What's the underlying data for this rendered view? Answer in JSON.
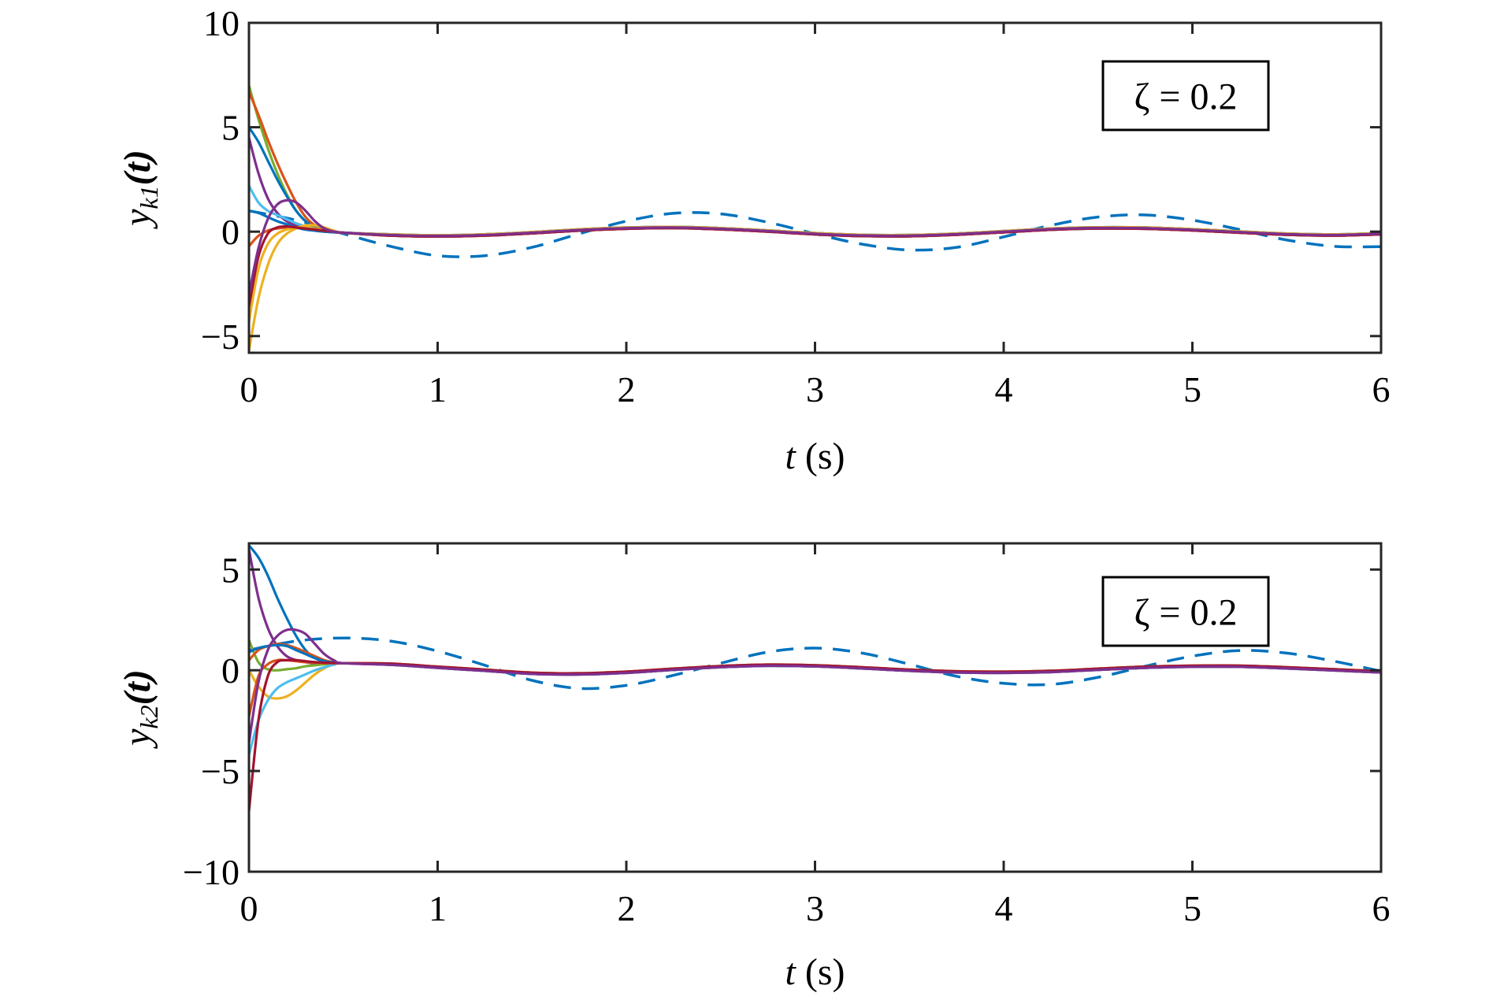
{
  "colors": {
    "blue": "#0072BD",
    "orange": "#D95319",
    "yellow": "#EDB120",
    "purple": "#7E2F8E",
    "green": "#77AC30",
    "lightblue": "#4DBEEE",
    "darkred": "#A2142F"
  },
  "chart_data": [
    {
      "type": "line",
      "ylabel": "y_k1(t)",
      "ylabel_main": "y",
      "ylabel_sub": "k1",
      "ylabel_arg": "(t)",
      "xlabel_var": "t",
      "xlabel_unit": " (s)",
      "legend": "ζ = 0.2",
      "xlim": [
        0,
        6
      ],
      "ylim": [
        -5.8,
        10
      ],
      "xticks": [
        "0",
        "1",
        "2",
        "3",
        "4",
        "5",
        "6"
      ],
      "yticks": [
        {
          "v": -5,
          "label": "−5"
        },
        {
          "v": 0,
          "label": "0"
        },
        {
          "v": 5,
          "label": "5"
        },
        {
          "v": 10,
          "label": "10"
        }
      ],
      "transient_x": [
        0,
        0.05,
        0.1,
        0.15,
        0.2,
        0.25,
        0.3,
        0.35,
        0.4,
        0.45,
        0.5
      ],
      "consensus_x": [
        0.5,
        0.75,
        1,
        1.25,
        1.5,
        1.75,
        2,
        2.25,
        2.5,
        2.75,
        3,
        3.25,
        3.5,
        3.75,
        4,
        4.25,
        4.5,
        4.75,
        5,
        5.25,
        5.5,
        5.75,
        6
      ],
      "consensus": [
        -0.05,
        -0.16,
        -0.2,
        -0.16,
        -0.05,
        0.08,
        0.17,
        0.2,
        0.14,
        0.03,
        -0.1,
        -0.18,
        -0.19,
        -0.12,
        0,
        0.12,
        0.18,
        0.17,
        0.09,
        -0.02,
        -0.12,
        -0.16,
        -0.1
      ],
      "reference": {
        "name": "reference (dashed)",
        "color": "blue",
        "x": [
          0,
          0.25,
          0.5,
          0.75,
          1,
          1.25,
          1.5,
          1.75,
          2,
          2.25,
          2.5,
          2.75,
          3,
          3.25,
          3.5,
          3.75,
          4,
          4.25,
          4.5,
          4.75,
          5,
          5.25,
          5.5,
          5.75,
          6
        ],
        "y": [
          1.0,
          0.55,
          -0.1,
          -0.7,
          -1.15,
          -1.15,
          -0.75,
          -0.1,
          0.5,
          0.88,
          0.85,
          0.45,
          -0.1,
          -0.6,
          -0.88,
          -0.75,
          -0.25,
          0.3,
          0.7,
          0.8,
          0.55,
          0.1,
          -0.4,
          -0.7,
          -0.72
        ]
      },
      "series": [
        {
          "color": "green",
          "y": [
            7,
            5.4,
            4.0,
            2.8,
            1.8,
            1.0,
            0.5,
            0.2,
            0.05,
            0,
            -0.05
          ]
        },
        {
          "color": "orange",
          "y": [
            6.7,
            5.6,
            4.4,
            3.3,
            2.3,
            1.4,
            0.7,
            0.3,
            0.1,
            0,
            -0.05
          ]
        },
        {
          "color": "blue",
          "y": [
            5,
            4.3,
            3.4,
            2.5,
            1.7,
            1.0,
            0.5,
            0.2,
            0.05,
            0,
            -0.05
          ]
        },
        {
          "color": "purple",
          "y": [
            4.5,
            2.8,
            1.6,
            0.9,
            0.5,
            0.3,
            0.15,
            0.05,
            0,
            -0.03,
            -0.05
          ]
        },
        {
          "color": "lightblue",
          "y": [
            2.2,
            1.4,
            1.0,
            0.8,
            0.6,
            0.4,
            0.25,
            0.1,
            0.03,
            0,
            -0.05
          ]
        },
        {
          "color": "blue",
          "y": [
            1.0,
            0.9,
            0.7,
            0.5,
            0.35,
            0.2,
            0.1,
            0.05,
            0,
            -0.03,
            -0.05
          ]
        },
        {
          "color": "orange",
          "y": [
            -0.7,
            -0.2,
            0.05,
            0.15,
            0.2,
            0.2,
            0.15,
            0.1,
            0.05,
            0,
            -0.05
          ]
        },
        {
          "color": "yellow",
          "y": [
            -5.7,
            -3.2,
            -1.6,
            -0.6,
            -0.1,
            0.15,
            0.3,
            0.3,
            0.2,
            0.05,
            -0.05
          ]
        },
        {
          "color": "yellow",
          "y": [
            -4.3,
            -1.8,
            -0.6,
            -0.1,
            0.1,
            0.2,
            0.2,
            0.15,
            0.08,
            0.02,
            -0.05
          ]
        },
        {
          "color": "darkred",
          "y": [
            -3.6,
            -1.2,
            -0.1,
            0.2,
            0.25,
            0.2,
            0.15,
            0.1,
            0.05,
            0,
            -0.05
          ]
        },
        {
          "color": "purple",
          "y": [
            -3,
            -0.8,
            0.6,
            1.3,
            1.5,
            1.4,
            1.0,
            0.5,
            0.15,
            0,
            -0.05
          ]
        }
      ]
    },
    {
      "type": "line",
      "ylabel": "y_k2(t)",
      "ylabel_main": "y",
      "ylabel_sub": "k2",
      "ylabel_arg": "(t)",
      "xlabel_var": "t",
      "xlabel_unit": " (s)",
      "legend": "ζ = 0.2",
      "xlim": [
        0,
        6
      ],
      "ylim": [
        -10,
        6.3
      ],
      "xticks": [
        "0",
        "1",
        "2",
        "3",
        "4",
        "5",
        "6"
      ],
      "yticks": [
        {
          "v": -10,
          "label": "−10"
        },
        {
          "v": -5,
          "label": "−5"
        },
        {
          "v": 0,
          "label": "0"
        },
        {
          "v": 5,
          "label": "5"
        }
      ],
      "transient_x": [
        0,
        0.05,
        0.1,
        0.15,
        0.2,
        0.25,
        0.3,
        0.35,
        0.4,
        0.45,
        0.5
      ],
      "consensus_x": [
        0.5,
        0.75,
        1,
        1.25,
        1.5,
        1.75,
        2,
        2.25,
        2.5,
        2.75,
        3,
        3.25,
        3.5,
        3.75,
        4,
        4.25,
        4.5,
        4.75,
        5,
        5.25,
        5.5,
        5.75,
        6
      ],
      "consensus": [
        0.35,
        0.3,
        0.15,
        0,
        -0.15,
        -0.18,
        -0.1,
        0.05,
        0.18,
        0.25,
        0.22,
        0.12,
        0,
        -0.08,
        -0.1,
        -0.06,
        0.05,
        0.15,
        0.2,
        0.2,
        0.12,
        0.02,
        -0.08
      ],
      "reference": {
        "name": "reference (dashed)",
        "color": "blue",
        "x": [
          0,
          0.25,
          0.5,
          0.75,
          1,
          1.25,
          1.5,
          1.75,
          2,
          2.25,
          2.5,
          2.75,
          3,
          3.25,
          3.5,
          3.75,
          4,
          4.25,
          4.5,
          4.75,
          5,
          5.25,
          5.5,
          5.75,
          6
        ],
        "y": [
          1.0,
          1.45,
          1.6,
          1.45,
          0.95,
          0.25,
          -0.5,
          -0.9,
          -0.75,
          -0.25,
          0.35,
          0.9,
          1.1,
          0.85,
          0.3,
          -0.3,
          -0.65,
          -0.7,
          -0.35,
          0.2,
          0.7,
          0.98,
          0.85,
          0.45,
          -0.05
        ]
      },
      "series": [
        {
          "color": "blue",
          "y": [
            6.2,
            5.6,
            4.7,
            3.6,
            2.6,
            1.7,
            1.0,
            0.6,
            0.45,
            0.38,
            0.35
          ]
        },
        {
          "color": "purple",
          "y": [
            6.0,
            3.6,
            2.1,
            1.2,
            0.7,
            0.5,
            0.4,
            0.35,
            0.35,
            0.35,
            0.35
          ]
        },
        {
          "color": "green",
          "y": [
            1.5,
            0.4,
            0.05,
            0,
            0.05,
            0.1,
            0.2,
            0.25,
            0.3,
            0.33,
            0.35
          ]
        },
        {
          "color": "orange",
          "y": [
            0.5,
            1.0,
            1.2,
            1.3,
            1.25,
            1.1,
            0.9,
            0.7,
            0.5,
            0.4,
            0.35
          ]
        },
        {
          "color": "blue",
          "y": [
            0.9,
            1.1,
            1.2,
            1.25,
            1.2,
            1.0,
            0.8,
            0.6,
            0.45,
            0.38,
            0.35
          ]
        },
        {
          "color": "yellow",
          "y": [
            0,
            -0.8,
            -1.3,
            -1.4,
            -1.3,
            -1.0,
            -0.6,
            -0.2,
            0.1,
            0.3,
            0.35
          ]
        },
        {
          "color": "lightblue",
          "y": [
            -4.2,
            -2.5,
            -1.5,
            -0.9,
            -0.6,
            -0.4,
            -0.2,
            0,
            0.15,
            0.28,
            0.35
          ]
        },
        {
          "color": "orange",
          "y": [
            -2.3,
            -0.3,
            0.3,
            0.5,
            0.5,
            0.45,
            0.4,
            0.38,
            0.36,
            0.35,
            0.35
          ]
        },
        {
          "color": "darkred",
          "y": [
            -7,
            -2.5,
            -0.3,
            0.4,
            0.5,
            0.5,
            0.45,
            0.4,
            0.38,
            0.36,
            0.35
          ]
        },
        {
          "color": "purple",
          "y": [
            -3.6,
            -0.6,
            1.0,
            1.7,
            2.0,
            2.0,
            1.8,
            1.3,
            0.8,
            0.5,
            0.35
          ]
        }
      ]
    }
  ]
}
